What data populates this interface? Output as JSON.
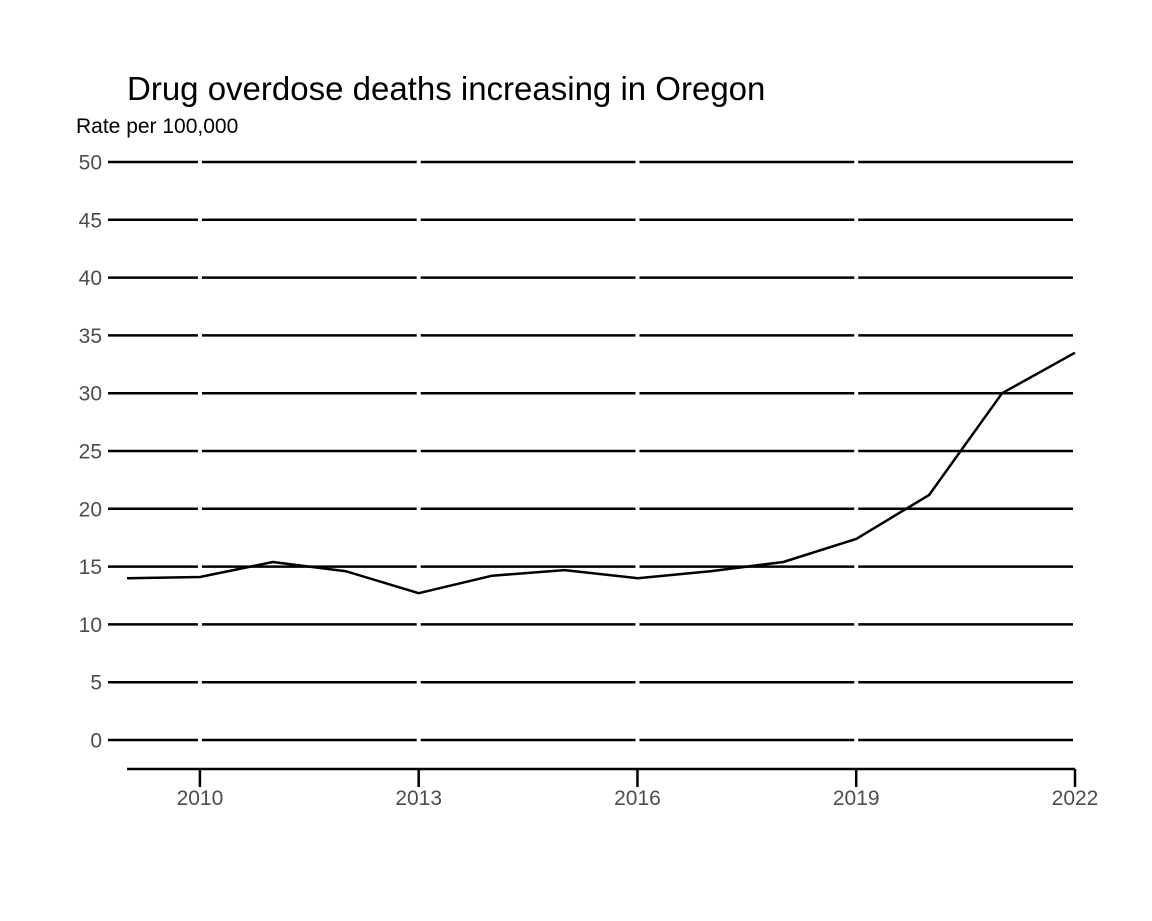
{
  "chart_data": {
    "type": "line",
    "title": "Drug overdose deaths increasing in Oregon",
    "subtitle": "Rate per 100,000",
    "xlabel": "",
    "ylabel": "",
    "xlim": [
      2009,
      2022
    ],
    "ylim": [
      -2.5,
      50
    ],
    "x_ticks": [
      2010,
      2013,
      2016,
      2019,
      2022
    ],
    "x_tick_labels": [
      "2010",
      "2013",
      "2016",
      "2019",
      "2022"
    ],
    "y_ticks": [
      0,
      5,
      10,
      15,
      20,
      25,
      30,
      35,
      40,
      45,
      50
    ],
    "y_tick_labels": [
      "0",
      "5",
      "10",
      "15",
      "20",
      "25",
      "30",
      "35",
      "40",
      "45",
      "50"
    ],
    "grid": "horizontal",
    "legend": "none",
    "series": [
      {
        "x": [
          2009,
          2010,
          2011,
          2012,
          2013,
          2014,
          2015,
          2016,
          2017,
          2018,
          2019,
          2020,
          2021,
          2022
        ],
        "y": [
          14.0,
          14.1,
          15.4,
          14.6,
          12.7,
          14.2,
          14.7,
          14.0,
          14.6,
          15.4,
          17.4,
          21.2,
          30.0,
          33.5
        ]
      }
    ],
    "colors": {
      "line": "#000000",
      "grid": "#000000",
      "tick_text": "#4d4d4d",
      "axis": "#000000"
    }
  }
}
